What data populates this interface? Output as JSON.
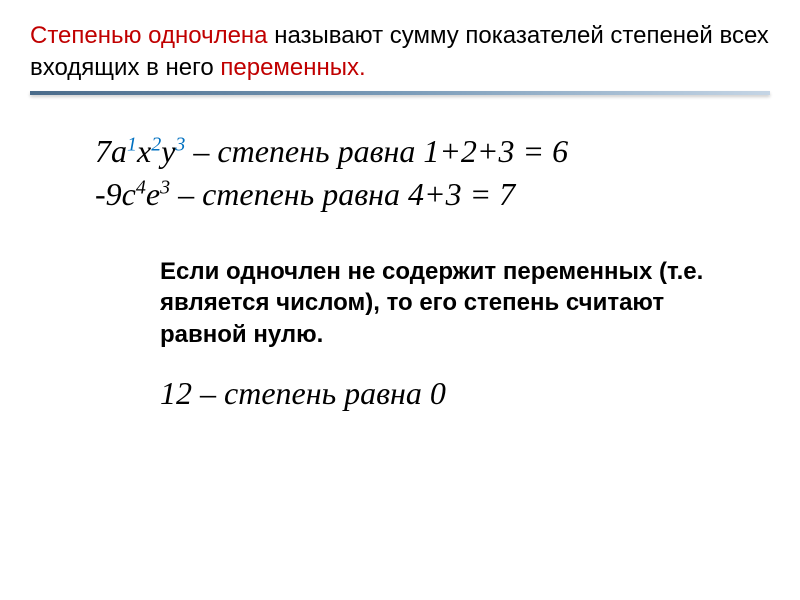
{
  "header": {
    "redPart1": "Степенью одночлена",
    "blackPart1": " называют сумму показателей степеней всех входящих в него ",
    "redPart2": "переменных."
  },
  "math": {
    "line1": {
      "coeff": "7a",
      "sup1": "1",
      "var2": "x",
      "sup2": "2",
      "var3": "y",
      "sup3": "3",
      "text": " – степень равна 1+2+3 = 6"
    },
    "line2": {
      "coeff": "-9c",
      "sup1": "4",
      "var2": "e",
      "sup2": "3",
      "text": " – степень равна 4+3 = 7"
    }
  },
  "note": {
    "text": "Если одночлен не содержит переменных (т.е. является числом), то его степень считают равной нулю."
  },
  "bottom": {
    "number": "12",
    "text": " – степень равна 0"
  },
  "colors": {
    "red": "#c00000",
    "blue": "#0070c0",
    "black": "#000000",
    "dividerStart": "#4a6b8a",
    "dividerEnd": "#c5d5e5"
  }
}
